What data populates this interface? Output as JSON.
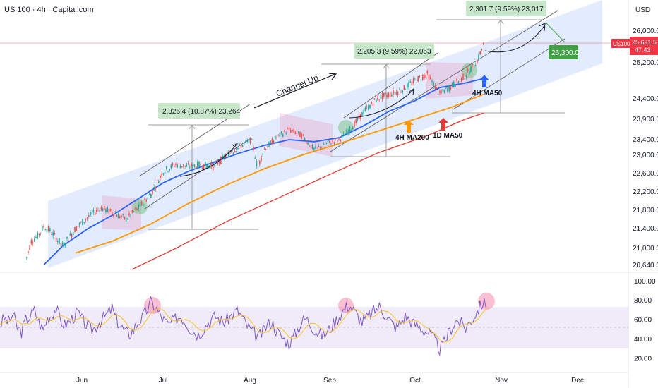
{
  "header": {
    "title": "US 100 · 4h · Capital.com",
    "currency": "USD"
  },
  "price_tag": {
    "symbol": "US100",
    "price": "25,691.5",
    "countdown": "47:43",
    "color": "#f23645"
  },
  "colors": {
    "channel": "#2962ff",
    "ma50_4h": "#2962ff",
    "ma200_4h": "#ff9800",
    "ma50_1d": "#e53935",
    "rsi": "#7e57c2",
    "rsi_ma": "#fbc02d",
    "pink": "#f06292",
    "green": "#66bb6a",
    "target": "#43a047"
  },
  "chart_data": {
    "type": "line",
    "main": {
      "y_ticks": [
        "26,000.0",
        "25,200.0",
        "24,400.0",
        "23,900.0",
        "23,400.0",
        "23,000.0",
        "22,600.0",
        "22,200.0",
        "21,800.0",
        "21,400.0",
        "21,000.0",
        "20,640.0"
      ],
      "x_ticks": [
        "Jun",
        "Jul",
        "Aug",
        "Sep",
        "Oct",
        "Nov",
        "Dec"
      ],
      "price": [
        [
          0.04,
          20700
        ],
        [
          0.05,
          21150
        ],
        [
          0.06,
          21250
        ],
        [
          0.07,
          21450
        ],
        [
          0.08,
          21350
        ],
        [
          0.09,
          21200
        ],
        [
          0.1,
          21050
        ],
        [
          0.12,
          21400
        ],
        [
          0.14,
          21650
        ],
        [
          0.16,
          21850
        ],
        [
          0.18,
          21750
        ],
        [
          0.2,
          21600
        ],
        [
          0.22,
          21850
        ],
        [
          0.24,
          22150
        ],
        [
          0.26,
          22650
        ],
        [
          0.28,
          22800
        ],
        [
          0.3,
          22750
        ],
        [
          0.32,
          22800
        ],
        [
          0.34,
          22750
        ],
        [
          0.36,
          23000
        ],
        [
          0.38,
          23200
        ],
        [
          0.4,
          23400
        ],
        [
          0.41,
          22700
        ],
        [
          0.42,
          23150
        ],
        [
          0.44,
          23450
        ],
        [
          0.46,
          23650
        ],
        [
          0.48,
          23500
        ],
        [
          0.5,
          23150
        ],
        [
          0.52,
          23300
        ],
        [
          0.54,
          23400
        ],
        [
          0.56,
          23700
        ],
        [
          0.58,
          24100
        ],
        [
          0.6,
          24400
        ],
        [
          0.62,
          24500
        ],
        [
          0.64,
          24600
        ],
        [
          0.66,
          24800
        ],
        [
          0.68,
          24950
        ],
        [
          0.7,
          24500
        ],
        [
          0.72,
          24700
        ],
        [
          0.74,
          24900
        ],
        [
          0.76,
          25250
        ],
        [
          0.77,
          25700
        ]
      ],
      "ma50_4h": [
        [
          0.07,
          20650
        ],
        [
          0.1,
          21050
        ],
        [
          0.14,
          21400
        ],
        [
          0.18,
          21700
        ],
        [
          0.22,
          22050
        ],
        [
          0.26,
          22400
        ],
        [
          0.3,
          22650
        ],
        [
          0.34,
          22850
        ],
        [
          0.38,
          23050
        ],
        [
          0.42,
          23250
        ],
        [
          0.46,
          23400
        ],
        [
          0.5,
          23350
        ],
        [
          0.54,
          23450
        ],
        [
          0.58,
          23750
        ],
        [
          0.62,
          24100
        ],
        [
          0.66,
          24350
        ],
        [
          0.7,
          24650
        ],
        [
          0.74,
          24750
        ],
        [
          0.77,
          24850
        ]
      ],
      "ma200_4h": [
        [
          0.12,
          20900
        ],
        [
          0.18,
          21150
        ],
        [
          0.24,
          21500
        ],
        [
          0.3,
          21950
        ],
        [
          0.36,
          22350
        ],
        [
          0.42,
          22700
        ],
        [
          0.48,
          23000
        ],
        [
          0.54,
          23300
        ],
        [
          0.6,
          23600
        ],
        [
          0.66,
          23900
        ],
        [
          0.72,
          24200
        ],
        [
          0.77,
          24500
        ]
      ],
      "ma50_1d": [
        [
          0.21,
          20550
        ],
        [
          0.28,
          21000
        ],
        [
          0.36,
          21550
        ],
        [
          0.44,
          22050
        ],
        [
          0.52,
          22550
        ],
        [
          0.6,
          23050
        ],
        [
          0.68,
          23500
        ],
        [
          0.74,
          23900
        ],
        [
          0.77,
          24050
        ]
      ]
    },
    "annotations": [
      {
        "text": "2,326.4 (10.87%) 23,264"
      },
      {
        "text": "2,205.3 (9.59%) 22,053"
      },
      {
        "text": "2,301.7 (9.59%) 23,017"
      },
      {
        "text": "26,300.0"
      },
      {
        "text": "Channel Up"
      },
      {
        "text": "4H MA200"
      },
      {
        "text": "1D MA50"
      },
      {
        "text": "4H MA50"
      }
    ],
    "rsi": {
      "y_ticks": [
        "100.00",
        "80.00",
        "60.00",
        "40.00",
        "20.00"
      ],
      "ylim": [
        10,
        105
      ],
      "band": [
        30,
        70
      ],
      "values": [
        55,
        62,
        58,
        66,
        52,
        48,
        60,
        64,
        70,
        58,
        50,
        62,
        66,
        72,
        60,
        55,
        58,
        63,
        68,
        60,
        55,
        50,
        52,
        58,
        62,
        67,
        72,
        60,
        54,
        48,
        45,
        50,
        58,
        62,
        70,
        78,
        74,
        66,
        60,
        55,
        58,
        62,
        64,
        58,
        52,
        48,
        45,
        50,
        56,
        60,
        64,
        60,
        58,
        62,
        66,
        70,
        64,
        56,
        50,
        46,
        42,
        48,
        55,
        58,
        50,
        44,
        40,
        36,
        42,
        50,
        58,
        62,
        56,
        50,
        46,
        44,
        48,
        54,
        60,
        66,
        72,
        76,
        70,
        64,
        58,
        62,
        66,
        70,
        74,
        68,
        62,
        56,
        52,
        58,
        64,
        60,
        56,
        54,
        50,
        48,
        44,
        38,
        30,
        36,
        46,
        54,
        60,
        56,
        52,
        58,
        64,
        72,
        78,
        74
      ]
    }
  }
}
